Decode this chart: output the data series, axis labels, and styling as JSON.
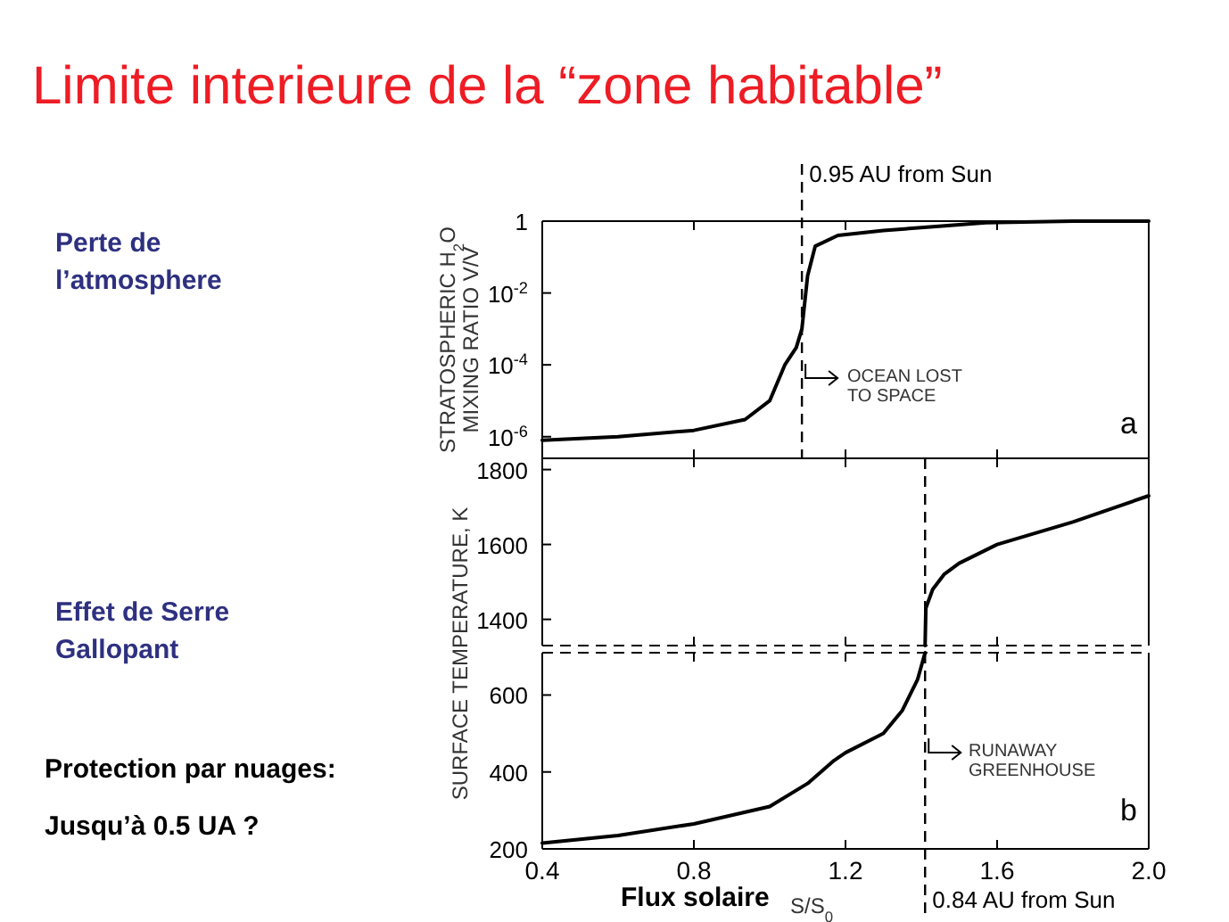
{
  "chart_data": [
    {
      "type": "line",
      "title": "Limite interieure de la “zone habitable”",
      "ylabel": "STRATOSPHERIC H$_{2}$O\nMIXING RATIO V/V",
      "log": true,
      "tick_labels": "y",
      "grid": false,
      "xlim": [
        0.4,
        2.0
      ],
      "xticks": [
        {
          "value": 0.4,
          "label": null
        },
        {
          "value": 0.8,
          "label": null
        },
        {
          "value": 1.2,
          "label": null
        },
        {
          "value": 1.6,
          "label": null
        },
        {
          "value": 2.0,
          "label": null
        }
      ],
      "ylim": [
        2.5e-07,
        1
      ],
      "yticks": [
        {
          "value": 1e-06,
          "label": "10$^{-6}$"
        },
        {
          "value": 0.0001,
          "label": "10$^{-4}$"
        },
        {
          "value": 0.01,
          "label": "10$^{-2}$"
        },
        1
      ],
      "series": [
        {
          "color": "#000000",
          "x": [
            0.4,
            0.6,
            0.8,
            0.935,
            1.0,
            1.04,
            1.07,
            1.085,
            1.1,
            1.12,
            1.18,
            1.3,
            1.57,
            1.8,
            2.0
          ],
          "values": [
            8e-07,
            1e-06,
            1.5e-06,
            3e-06,
            1e-05,
            0.0001,
            0.0003,
            0.001,
            0.03,
            0.2,
            0.4,
            0.55,
            0.9,
            1,
            1
          ]
        }
      ],
      "ref_lines": [
        {
          "axis": "x",
          "value": 1.085,
          "label": "0.95 AU from Sun",
          "line_style": "dashed"
        }
      ],
      "annotations": [
        "Perte de\nl’atmosphere",
        "OCEAN LOST\nTO SPACE",
        "a"
      ]
    },
    {
      "type": "line",
      "ylabel": "SURFACE TEMPERATURE, K",
      "tick_labels": "y",
      "grid": false,
      "xlim": [
        0.4,
        2.0
      ],
      "xticks": [
        {
          "value": 0.4,
          "label": null
        },
        {
          "value": 0.8,
          "label": null
        },
        {
          "value": 1.2,
          "label": null
        },
        {
          "value": 1.6,
          "label": null
        },
        {
          "value": 2.0,
          "label": null
        }
      ],
      "ylim": [
        1330,
        1830
      ],
      "yticks": [
        1400,
        1600,
        1800
      ],
      "series": [
        {
          "color": "#000000",
          "x": [
            1.41,
            1.412,
            1.43,
            1.46,
            1.5,
            1.6,
            1.8,
            2.0
          ],
          "values": [
            1330,
            1430,
            1480,
            1520,
            1550,
            1600,
            1660,
            1730
          ]
        }
      ],
      "ref_lines": [
        {
          "axis": "x",
          "value": 1.41,
          "line_style": "dashed"
        }
      ],
      "annotations": [
        "Effet de Serre\nGallopant"
      ]
    },
    {
      "type": "line",
      "xlabel": "S/S$_{0}$",
      "grid": false,
      "xlim": [
        0.4,
        2.0
      ],
      "xticks": [
        0.4,
        0.8,
        1.2,
        1.6,
        {
          "value": 2.0,
          "label": "2.0"
        }
      ],
      "ylim": [
        200,
        710
      ],
      "yticks": [
        200,
        400,
        600
      ],
      "series": [
        {
          "color": "#000000",
          "x": [
            0.4,
            0.6,
            0.8,
            1.0,
            1.1,
            1.17,
            1.2,
            1.3,
            1.35,
            1.39,
            1.41
          ],
          "values": [
            215,
            235,
            265,
            310,
            370,
            430,
            450,
            500,
            560,
            640,
            710
          ]
        }
      ],
      "ref_lines": [
        {
          "axis": "x",
          "value": 1.41,
          "label": "0.84 AU from Sun",
          "line_style": "dashed"
        }
      ],
      "annotations": [
        "Protection par nuages:",
        "Jusqu’à 0.5 UA ?",
        "Flux solaire",
        "RUNAWAY\nGREENHOUSE",
        "b"
      ]
    }
  ]
}
